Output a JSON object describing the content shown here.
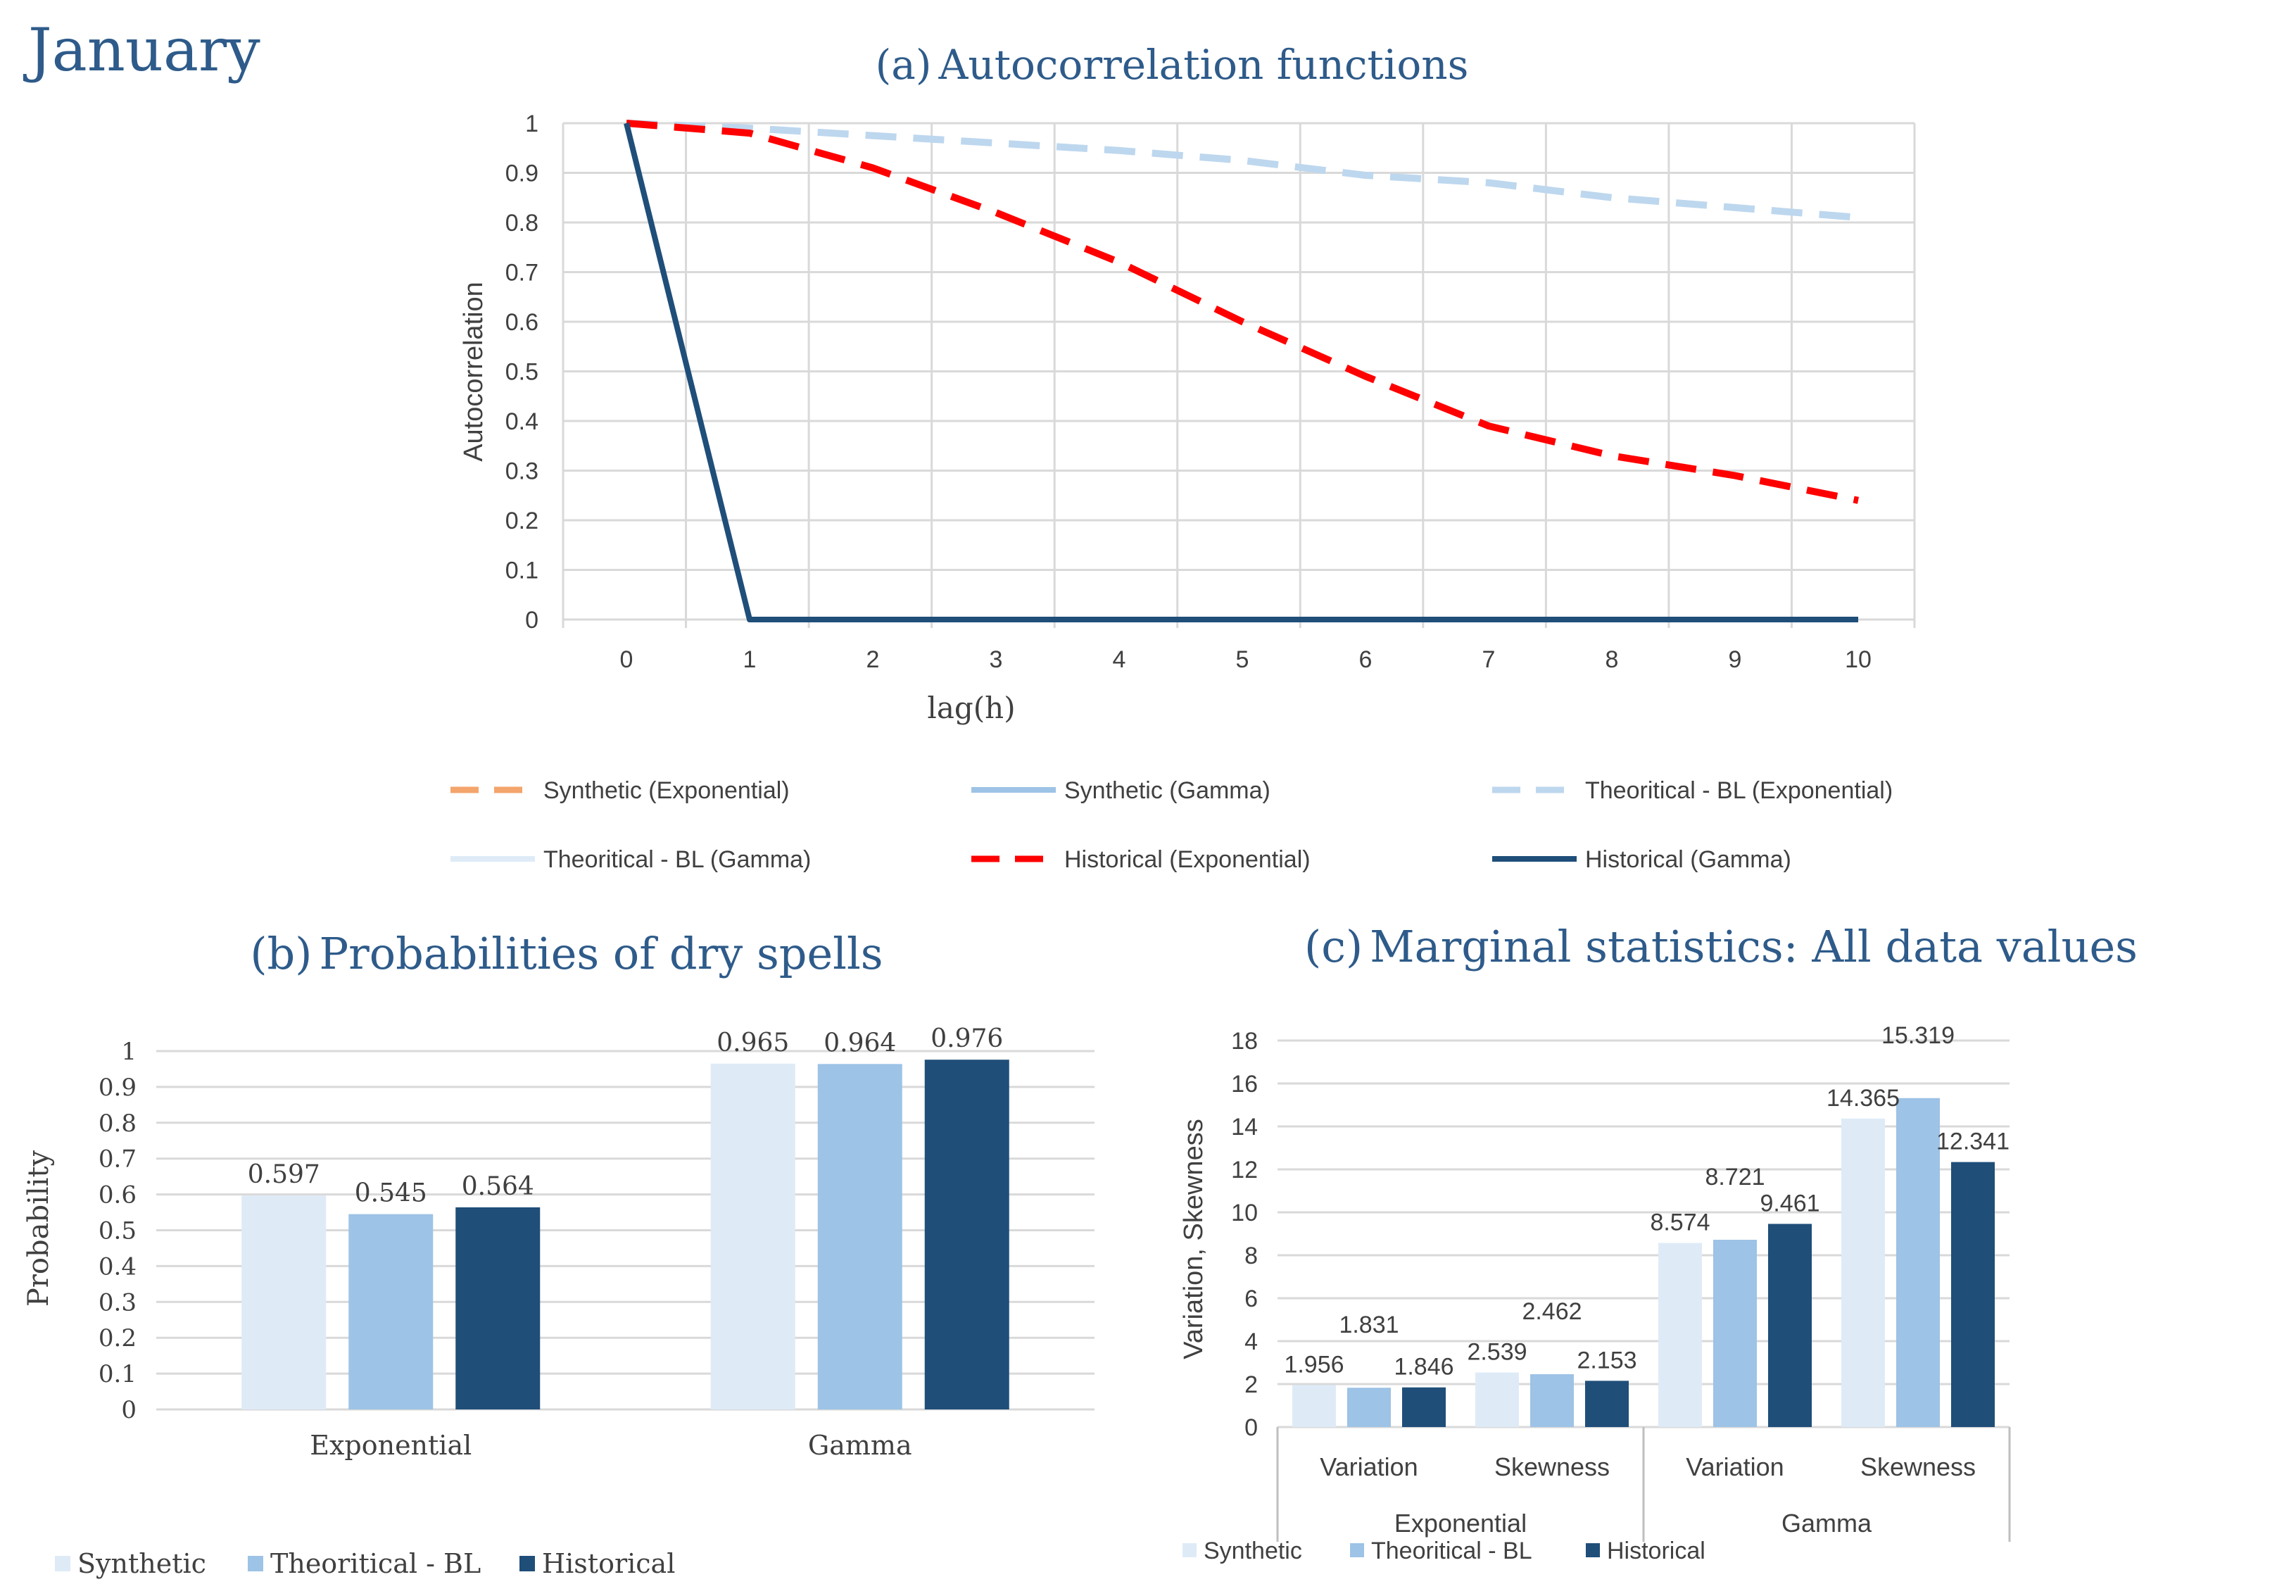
{
  "page": {
    "month_title": "January"
  },
  "chart_data": [
    {
      "id": "a",
      "type": "line",
      "title_prefix": "(a)",
      "title": "Autocorrelation functions",
      "xlabel": "lag(h)",
      "ylabel": "Autocorrelation",
      "x": [
        0,
        1,
        2,
        3,
        4,
        5,
        6,
        7,
        8,
        9,
        10
      ],
      "xlim": [
        0,
        10
      ],
      "ylim": [
        0,
        1
      ],
      "yticks": [
        "0",
        "0.1",
        "0.2",
        "0.3",
        "0.4",
        "0.5",
        "0.6",
        "0.7",
        "0.8",
        "0.9",
        "1"
      ],
      "xticks": [
        "0",
        "1",
        "2",
        "3",
        "4",
        "5",
        "6",
        "7",
        "8",
        "9",
        "10"
      ],
      "grid": true,
      "legend_position": "bottom",
      "series": [
        {
          "name": "Synthetic (Exponential)",
          "color": "#f4a56b",
          "dash": true,
          "values": null
        },
        {
          "name": "Synthetic (Gamma)",
          "color": "#9dc3e6",
          "dash": false,
          "values": null
        },
        {
          "name": "Theoritical - BL (Exponential)",
          "color": "#bdd7ee",
          "dash": true,
          "values": [
            1,
            0.99,
            0.975,
            0.96,
            0.945,
            0.925,
            0.895,
            0.88,
            0.85,
            0.83,
            0.81
          ]
        },
        {
          "name": "Theoritical - BL (Gamma)",
          "color": "#deebf7",
          "dash": false,
          "values": null
        },
        {
          "name": "Historical (Exponential)",
          "color": "#ff0000",
          "dash": true,
          "values": [
            1,
            0.98,
            0.91,
            0.82,
            0.72,
            0.6,
            0.49,
            0.39,
            0.33,
            0.29,
            0.24
          ]
        },
        {
          "name": "Historical (Gamma)",
          "color": "#1f4e79",
          "dash": false,
          "values": [
            1,
            0,
            0,
            0,
            0,
            0,
            0,
            0,
            0,
            0,
            0
          ]
        }
      ]
    },
    {
      "id": "b",
      "type": "bar",
      "title_prefix": "(b)",
      "title": "Probabilities of dry spells",
      "ylabel": "Probability",
      "categories": [
        "Exponential",
        "Gamma"
      ],
      "ylim": [
        0,
        1
      ],
      "yticks": [
        "0",
        "0.1",
        "0.2",
        "0.3",
        "0.4",
        "0.5",
        "0.6",
        "0.7",
        "0.8",
        "0.9",
        "1"
      ],
      "grid": true,
      "legend_position": "bottom-left",
      "series": [
        {
          "name": "Synthetic",
          "color": "#deebf7",
          "values": [
            0.597,
            0.965
          ],
          "labels": [
            "0.597",
            "0.965"
          ]
        },
        {
          "name": "Theoritical - BL",
          "color": "#9dc3e6",
          "values": [
            0.545,
            0.964
          ],
          "labels": [
            "0.545",
            "0.964"
          ]
        },
        {
          "name": "Historical",
          "color": "#1f4e79",
          "values": [
            0.564,
            0.976
          ],
          "labels": [
            "0.564",
            "0.976"
          ]
        }
      ]
    },
    {
      "id": "c",
      "type": "bar",
      "title_prefix": "(c)",
      "title": "Marginal statistics: All data values",
      "ylabel": "Variation, Skewness",
      "categories": [
        "Variation",
        "Skewness",
        "Variation",
        "Skewness"
      ],
      "groups": [
        "Exponential",
        "Gamma"
      ],
      "ylim": [
        0,
        18
      ],
      "yticks": [
        "0",
        "2",
        "4",
        "6",
        "8",
        "10",
        "12",
        "14",
        "16",
        "18"
      ],
      "grid": true,
      "legend_position": "bottom-left",
      "series": [
        {
          "name": "Synthetic",
          "color": "#deebf7",
          "values": [
            1.956,
            2.539,
            8.574,
            14.365
          ],
          "labels": [
            "1.956",
            "2.539",
            "8.574",
            "14.365"
          ]
        },
        {
          "name": "Theoritical - BL",
          "color": "#9dc3e6",
          "values": [
            1.831,
            2.462,
            8.721,
            15.319
          ],
          "labels": [
            "1.831",
            "2.462",
            "8.721",
            "15.319"
          ]
        },
        {
          "name": "Historical",
          "color": "#1f4e79",
          "values": [
            1.846,
            2.153,
            9.461,
            12.341
          ],
          "labels": [
            "1.846",
            "2.153",
            "9.461",
            "12.341"
          ]
        }
      ]
    }
  ]
}
